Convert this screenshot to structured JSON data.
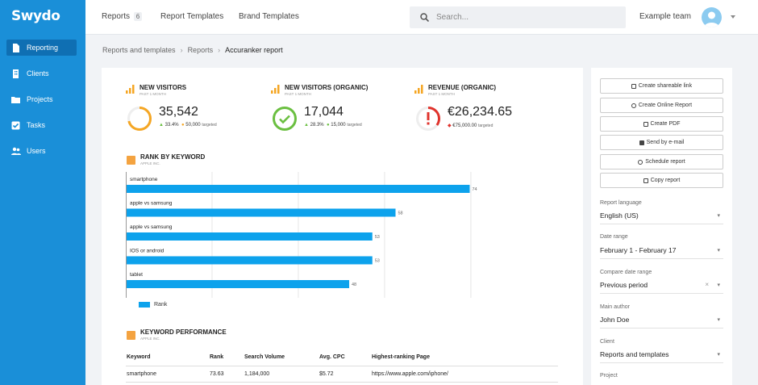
{
  "app": {
    "logo": "Swydo"
  },
  "sidebar": {
    "items": [
      {
        "label": "Reporting",
        "icon": "document-icon",
        "active": true
      },
      {
        "label": "Clients",
        "icon": "building-icon",
        "active": false
      },
      {
        "label": "Projects",
        "icon": "folder-icon",
        "active": false
      },
      {
        "label": "Tasks",
        "icon": "checkbox-icon",
        "active": false
      },
      {
        "label": "Users",
        "icon": "users-icon",
        "active": false
      }
    ]
  },
  "topbar": {
    "tabs": [
      {
        "label": "Reports",
        "badge": "6"
      },
      {
        "label": "Report Templates"
      },
      {
        "label": "Brand Templates"
      }
    ],
    "search_placeholder": "Search...",
    "team": "Example team"
  },
  "breadcrumb": [
    "Reports and templates",
    "Reports",
    "Accuranker report"
  ],
  "kpis": [
    {
      "title": "NEW VISITORS",
      "sub": "PAST 1 MONTH",
      "value": "35,542",
      "change": "33.4%",
      "target": "50,000",
      "target_suffix": "targeted",
      "status": "progress",
      "fraction": 0.71,
      "color": "#f5a623"
    },
    {
      "title": "NEW VISITORS (ORGANIC)",
      "sub": "PAST 1 MONTH",
      "value": "17,044",
      "change": "28.3%",
      "target": "15,000",
      "target_suffix": "targeted",
      "status": "ok",
      "fraction": 1,
      "color": "#6abf40"
    },
    {
      "title": "REVENUE (ORGANIC)",
      "sub": "PAST 1 MONTH",
      "value": "€26,234.65",
      "change": "",
      "target": "€75,000.00",
      "target_suffix": "targeted",
      "status": "alert",
      "fraction": 0.35,
      "color": "#e0332c"
    }
  ],
  "rank_section": {
    "title": "RANK BY KEYWORD",
    "sub": "APPLE INC."
  },
  "chart_data": {
    "type": "bar",
    "orientation": "horizontal",
    "categories": [
      "smartphone",
      "apple vs samsung",
      "apple vs samsung",
      "IOS or android",
      "tablet"
    ],
    "series": [
      {
        "name": "Rank",
        "values": [
          74,
          58,
          53,
          53,
          48
        ],
        "color": "#0da2ec"
      }
    ],
    "xlim": [
      0,
      80
    ],
    "grid": true,
    "legend": "bottom-left"
  },
  "kw_section": {
    "title": "KEYWORD PERFORMANCE",
    "sub": "APPLE INC."
  },
  "table": {
    "headers": [
      "Keyword",
      "Rank",
      "Search Volume",
      "Avg. CPC",
      "Highest-ranking Page"
    ],
    "rows": [
      [
        "smartphone",
        "73.63",
        "1,184,000",
        "$5.72",
        "https://www.apple.com/iphone/"
      ]
    ]
  },
  "actions": [
    {
      "label": "Create shareable link",
      "icon": "link-icon"
    },
    {
      "label": "Create Online Report",
      "icon": "globe-icon"
    },
    {
      "label": "Create PDF",
      "icon": "pdf-icon"
    },
    {
      "label": "Send by e-mail",
      "icon": "mail-icon"
    },
    {
      "label": "Schedule report",
      "icon": "clock-icon"
    },
    {
      "label": "Copy report",
      "icon": "copy-icon"
    }
  ],
  "fields": [
    {
      "label": "Report language",
      "value": "English (US)"
    },
    {
      "label": "Date range",
      "value": "February 1 - February 17"
    },
    {
      "label": "Compare date range",
      "value": "Previous period",
      "clear": "×"
    },
    {
      "label": "Main author",
      "value": "John Doe"
    },
    {
      "label": "Client",
      "value": "Reports and templates"
    },
    {
      "label": "Project",
      "value": ""
    }
  ]
}
